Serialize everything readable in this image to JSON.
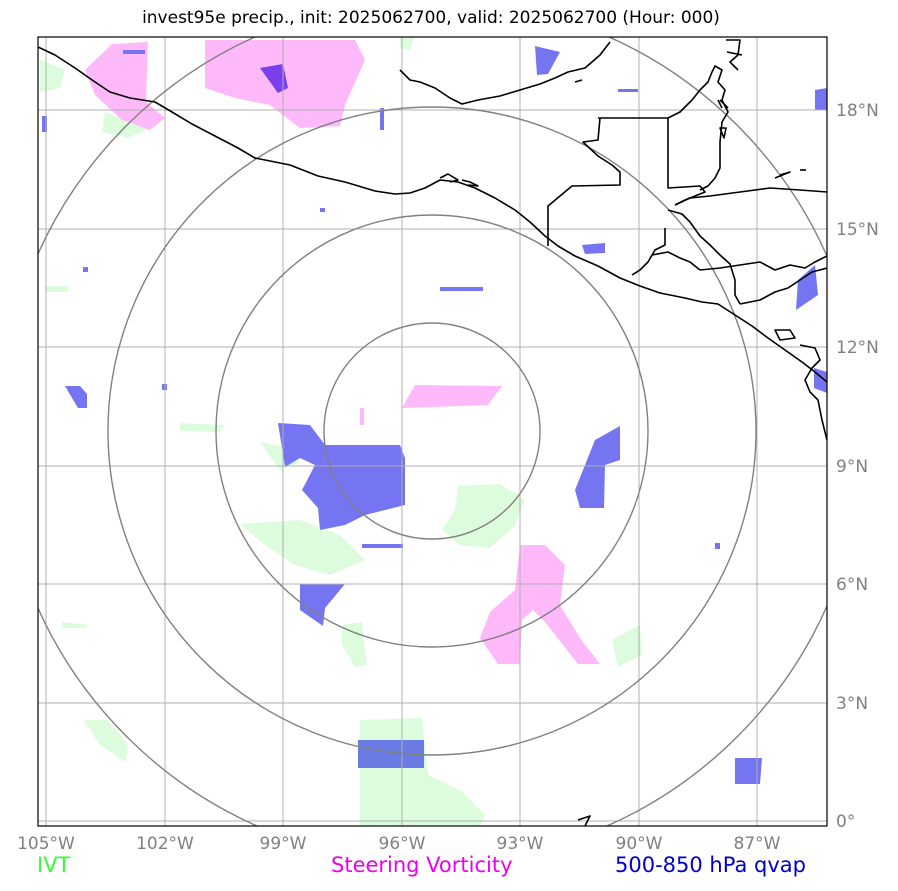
{
  "title": "invest95e precip., init: 2025062700, valid: 2025062700 (Hour: 000)",
  "longitude_labels": [
    "105°W",
    "102°W",
    "99°W",
    "96°W",
    "93°W",
    "90°W",
    "87°W"
  ],
  "latitude_labels": [
    "18°N",
    "15°N",
    "12°N",
    "9°N",
    "6°N",
    "3°N",
    "0°"
  ],
  "legend": {
    "ivt": {
      "label": "IVT",
      "color": "#33ff33"
    },
    "steering": {
      "label": "Steering Vorticity",
      "color": "#ee00ee"
    },
    "qvap": {
      "label": "500-850 hPa qvap",
      "color": "#0000cc"
    }
  },
  "colors": {
    "ivt_fill": "#ddfcdd",
    "vorticity_fill": "#fdb9fa",
    "qvap_fill": "#7575f2",
    "grid": "#b0b0b0",
    "range_rings": "#808080",
    "coastline": "#000000"
  }
}
